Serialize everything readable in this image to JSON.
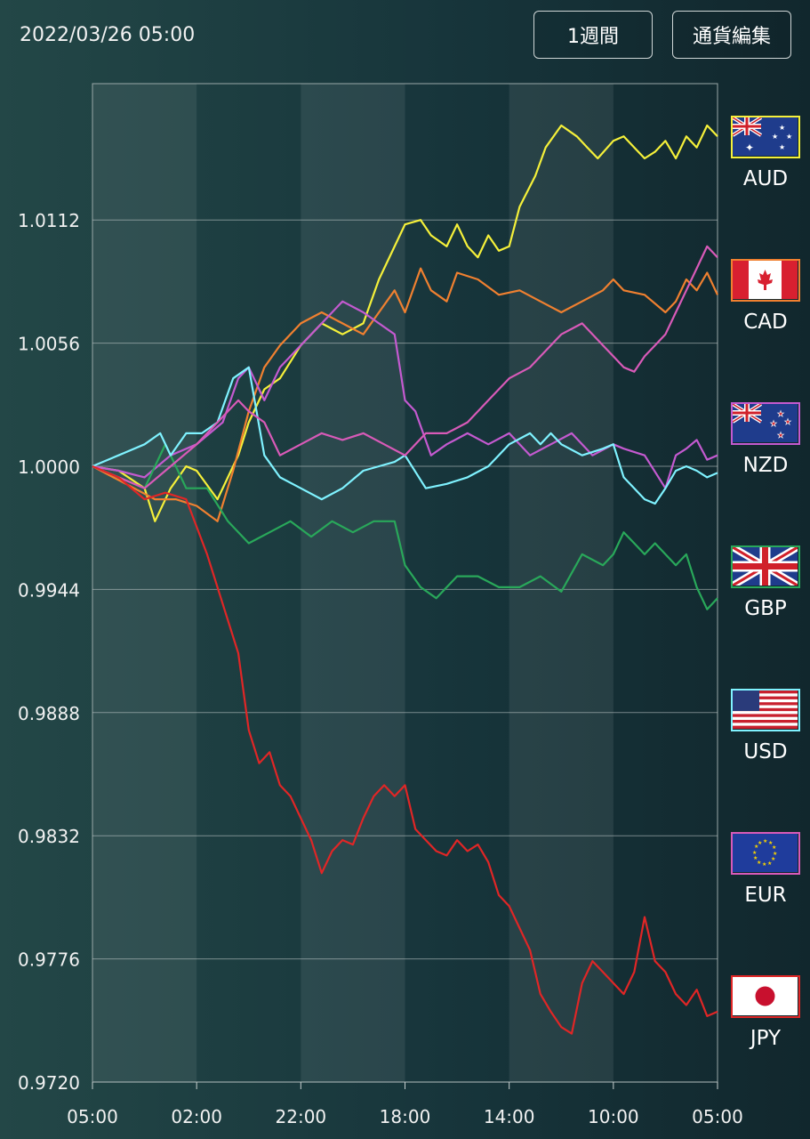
{
  "header": {
    "datetime": "2022/03/26 05:00",
    "period_label": "1週間",
    "edit_label": "通貨編集"
  },
  "colors": {
    "AUD": "#f5f03a",
    "CAD": "#f08030",
    "NZD": "#c45ad0",
    "GBP": "#29a85a",
    "USD": "#7ff2ff",
    "EUR": "#d85ab8",
    "JPY": "#e02626"
  },
  "legend": [
    {
      "code": "AUD",
      "icon": "australia-flag-icon"
    },
    {
      "code": "CAD",
      "icon": "canada-flag-icon"
    },
    {
      "code": "NZD",
      "icon": "new-zealand-flag-icon"
    },
    {
      "code": "GBP",
      "icon": "uk-flag-icon"
    },
    {
      "code": "USD",
      "icon": "us-flag-icon"
    },
    {
      "code": "EUR",
      "icon": "eu-flag-icon"
    },
    {
      "code": "JPY",
      "icon": "japan-flag-icon"
    }
  ],
  "chart_data": {
    "type": "line",
    "title": "",
    "xlabel": "",
    "ylabel": "",
    "x_ticks": [
      "05:00",
      "02:00",
      "22:00",
      "18:00",
      "14:00",
      "10:00",
      "05:00"
    ],
    "y_ticks": [
      1.0112,
      1.0056,
      1.0,
      0.9944,
      0.9888,
      0.9832,
      0.9776,
      0.972
    ],
    "ylim": [
      0.972,
      1.0174
    ],
    "xlim": [
      0,
      120
    ],
    "grid": true,
    "series": [
      {
        "name": "AUD",
        "x": [
          0,
          5,
          10,
          12,
          15,
          18,
          20,
          24,
          28,
          30,
          33,
          36,
          40,
          44,
          48,
          52,
          55,
          58,
          60,
          63,
          65,
          68,
          70,
          72,
          74,
          76,
          78,
          80,
          82,
          85,
          87,
          90,
          93,
          95,
          97,
          100,
          102,
          104,
          106,
          108,
          110,
          112,
          114,
          116,
          118,
          120
        ],
        "y": [
          1.0,
          0.9998,
          0.999,
          0.9975,
          0.999,
          1.0,
          0.9998,
          0.9985,
          1.0005,
          1.002,
          1.0035,
          1.004,
          1.0055,
          1.0065,
          1.006,
          1.0065,
          1.0085,
          1.01,
          1.011,
          1.0112,
          1.0105,
          1.01,
          1.011,
          1.01,
          1.0095,
          1.0105,
          1.0098,
          1.01,
          1.0118,
          1.0132,
          1.0145,
          1.0155,
          1.015,
          1.0145,
          1.014,
          1.0148,
          1.015,
          1.0145,
          1.014,
          1.0143,
          1.0148,
          1.014,
          1.015,
          1.0145,
          1.0155,
          1.015
        ]
      },
      {
        "name": "CAD",
        "x": [
          0,
          4,
          8,
          12,
          16,
          20,
          24,
          27,
          30,
          33,
          36,
          40,
          44,
          48,
          52,
          55,
          58,
          60,
          63,
          65,
          68,
          70,
          74,
          78,
          82,
          86,
          90,
          94,
          98,
          100,
          102,
          106,
          110,
          112,
          114,
          116,
          118,
          120
        ],
        "y": [
          1.0,
          0.9995,
          0.999,
          0.9985,
          0.9985,
          0.9982,
          0.9975,
          0.9998,
          1.0025,
          1.0045,
          1.0055,
          1.0065,
          1.007,
          1.0065,
          1.006,
          1.007,
          1.008,
          1.007,
          1.009,
          1.008,
          1.0075,
          1.0088,
          1.0085,
          1.0078,
          1.008,
          1.0075,
          1.007,
          1.0075,
          1.008,
          1.0085,
          1.008,
          1.0078,
          1.007,
          1.0075,
          1.0085,
          1.008,
          1.0088,
          1.0078
        ]
      },
      {
        "name": "NZD",
        "x": [
          0,
          5,
          10,
          15,
          20,
          25,
          28,
          30,
          33,
          36,
          40,
          44,
          48,
          52,
          55,
          58,
          60,
          62,
          65,
          68,
          72,
          76,
          80,
          84,
          88,
          92,
          96,
          100,
          102,
          106,
          110,
          112,
          114,
          116,
          118,
          120
        ],
        "y": [
          1.0,
          0.9998,
          0.9995,
          1.0005,
          1.001,
          1.002,
          1.004,
          1.0045,
          1.003,
          1.0045,
          1.0055,
          1.0065,
          1.0075,
          1.007,
          1.0065,
          1.006,
          1.003,
          1.0025,
          1.0005,
          1.001,
          1.0015,
          1.001,
          1.0015,
          1.0005,
          1.001,
          1.0015,
          1.0005,
          1.001,
          1.0008,
          1.0005,
          0.999,
          1.0005,
          1.0008,
          1.0012,
          1.0003,
          1.0005
        ]
      },
      {
        "name": "GBP",
        "x": [
          0,
          5,
          10,
          14,
          18,
          22,
          26,
          30,
          34,
          38,
          42,
          46,
          50,
          54,
          58,
          60,
          63,
          66,
          70,
          74,
          78,
          82,
          86,
          90,
          94,
          98,
          100,
          102,
          104,
          106,
          108,
          110,
          112,
          114,
          116,
          118,
          120
        ],
        "y": [
          1.0,
          0.9995,
          0.999,
          1.001,
          0.999,
          0.999,
          0.9975,
          0.9965,
          0.997,
          0.9975,
          0.9968,
          0.9975,
          0.997,
          0.9975,
          0.9975,
          0.9955,
          0.9945,
          0.994,
          0.995,
          0.995,
          0.9945,
          0.9945,
          0.995,
          0.9943,
          0.996,
          0.9955,
          0.996,
          0.997,
          0.9965,
          0.996,
          0.9965,
          0.996,
          0.9955,
          0.996,
          0.9945,
          0.9935,
          0.994
        ]
      },
      {
        "name": "USD",
        "x": [
          0,
          5,
          10,
          13,
          15,
          18,
          21,
          24,
          27,
          30,
          33,
          36,
          40,
          44,
          48,
          52,
          55,
          58,
          60,
          64,
          68,
          72,
          76,
          80,
          84,
          86,
          88,
          90,
          94,
          98,
          100,
          102,
          104,
          106,
          108,
          110,
          112,
          114,
          116,
          118,
          120
        ],
        "y": [
          1.0,
          1.0005,
          1.001,
          1.0015,
          1.0005,
          1.0015,
          1.0015,
          1.002,
          1.004,
          1.0045,
          1.0005,
          0.9995,
          0.999,
          0.9985,
          0.999,
          0.9998,
          1.0,
          1.0002,
          1.0005,
          0.999,
          0.9992,
          0.9995,
          1.0,
          1.001,
          1.0015,
          1.001,
          1.0015,
          1.001,
          1.0005,
          1.0008,
          1.001,
          0.9995,
          0.999,
          0.9985,
          0.9983,
          0.999,
          0.9998,
          1.0,
          0.9998,
          0.9995,
          0.9997
        ]
      },
      {
        "name": "EUR",
        "x": [
          0,
          5,
          10,
          15,
          20,
          24,
          28,
          30,
          33,
          36,
          40,
          44,
          48,
          52,
          56,
          60,
          64,
          68,
          72,
          76,
          80,
          84,
          88,
          90,
          94,
          96,
          98,
          100,
          102,
          104,
          106,
          108,
          110,
          112,
          114,
          116,
          118,
          120
        ],
        "y": [
          1.0,
          0.9995,
          0.999,
          1.0,
          1.001,
          1.002,
          1.003,
          1.0025,
          1.002,
          1.0005,
          1.001,
          1.0015,
          1.0012,
          1.0015,
          1.001,
          1.0005,
          1.0015,
          1.0015,
          1.002,
          1.003,
          1.004,
          1.0045,
          1.0055,
          1.006,
          1.0065,
          1.006,
          1.0055,
          1.005,
          1.0045,
          1.0043,
          1.005,
          1.0055,
          1.006,
          1.007,
          1.008,
          1.009,
          1.01,
          1.0095
        ]
      },
      {
        "name": "JPY",
        "x": [
          0,
          5,
          10,
          14,
          18,
          22,
          26,
          28,
          30,
          32,
          34,
          36,
          38,
          40,
          42,
          44,
          46,
          48,
          50,
          52,
          54,
          56,
          58,
          60,
          62,
          64,
          66,
          68,
          70,
          72,
          74,
          76,
          78,
          80,
          82,
          84,
          86,
          88,
          90,
          92,
          94,
          96,
          98,
          100,
          102,
          104,
          106,
          108,
          110,
          112,
          114,
          116,
          118,
          120
        ],
        "y": [
          1.0,
          0.9995,
          0.9985,
          0.9988,
          0.9985,
          0.996,
          0.993,
          0.9915,
          0.988,
          0.9865,
          0.987,
          0.9855,
          0.985,
          0.984,
          0.983,
          0.9815,
          0.9825,
          0.983,
          0.9828,
          0.984,
          0.985,
          0.9855,
          0.985,
          0.9855,
          0.9835,
          0.983,
          0.9825,
          0.9823,
          0.983,
          0.9825,
          0.9828,
          0.982,
          0.9805,
          0.98,
          0.979,
          0.978,
          0.976,
          0.9752,
          0.9745,
          0.9742,
          0.9765,
          0.9775,
          0.977,
          0.9765,
          0.976,
          0.977,
          0.9795,
          0.9775,
          0.977,
          0.976,
          0.9755,
          0.9762,
          0.975,
          0.9752
        ]
      }
    ]
  }
}
